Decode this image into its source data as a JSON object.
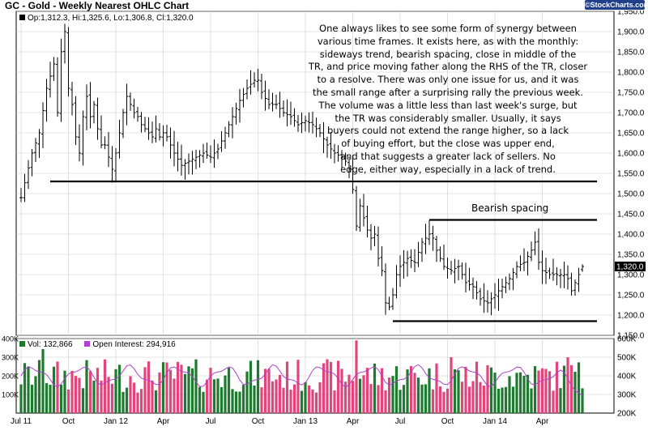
{
  "header": {
    "title": "GC - Gold - Weekly Nearest OHLC Chart",
    "brand": "©StockCharts.com"
  },
  "legend": {
    "ohlc": "Op:1,312.3, Hi:1,325.6, Lo:1,306.8, Cl:1,320.0",
    "volume": "Vol: 132,866",
    "open_interest": "Open Interest: 294,916"
  },
  "annotations": {
    "commentary": "One always likes to see some form of synergy between\nvarious time frames.  It exists here, as with the monthly:\nsideways trend, bearish spacing, close in middle of the\nTR, and price moving father along the RHS of the TR, closer\nto a resolve.  There was only one issue for us, and it was\nthe small range after a surprising rally the previous week.\nThe volume was a little less than last week's surge, but\nthe TR was considerably smaller.  Usually, it says\nbuyers could not extend the range higher, so a lack\nof buying effort, but the close was upper end,\nand that suggests a greater lack of sellers.  No\nedge, either way, especially in a lack of trend.",
    "bearish_spacing": "Bearish spacing"
  },
  "colors": {
    "price_bar": "#000000",
    "vol_up": "#1e7a2e",
    "vol_down": "#e0457b",
    "open_interest": "#b040d0",
    "last_price_box": "#000000",
    "grid": "#cccccc"
  },
  "chart_data": {
    "type": "ohlc",
    "title": "GC - Gold - Weekly Nearest OHLC Chart",
    "price_axis": {
      "min": 1150,
      "max": 1950,
      "ticks": [
        "1,150.0",
        "1,200.0",
        "1,250.0",
        "1,300.0",
        "1,350.0",
        "1,400.0",
        "1,450.0",
        "1,500.0",
        "1,550.0",
        "1,600.0",
        "1,650.0",
        "1,700.0",
        "1,750.0",
        "1,800.0",
        "1,850.0",
        "1,900.0",
        "1,950.0"
      ]
    },
    "x_ticks": [
      "Jul 11",
      "Oct",
      "Jan 12",
      "Apr",
      "Jul",
      "Oct",
      "Jan 13",
      "Apr",
      "Jul",
      "Oct",
      "Jan 14",
      "Apr"
    ],
    "x_tick_weeks": [
      0,
      13,
      26,
      39,
      52,
      65,
      78,
      91,
      104,
      117,
      130,
      143
    ],
    "last_price": "1,320.0",
    "anchors": [
      [
        0,
        1490
      ],
      [
        3,
        1600
      ],
      [
        5,
        1650
      ],
      [
        7,
        1760
      ],
      [
        9,
        1820
      ],
      [
        10,
        1700
      ],
      [
        11,
        1850
      ],
      [
        12,
        1900
      ],
      [
        13,
        1760
      ],
      [
        14,
        1720
      ],
      [
        15,
        1640
      ],
      [
        16,
        1600
      ],
      [
        17,
        1690
      ],
      [
        18,
        1740
      ],
      [
        19,
        1690
      ],
      [
        20,
        1720
      ],
      [
        21,
        1660
      ],
      [
        22,
        1620
      ],
      [
        23,
        1620
      ],
      [
        24,
        1590
      ],
      [
        25,
        1560
      ],
      [
        26,
        1600
      ],
      [
        27,
        1650
      ],
      [
        28,
        1700
      ],
      [
        29,
        1740
      ],
      [
        30,
        1720
      ],
      [
        31,
        1700
      ],
      [
        32,
        1690
      ],
      [
        33,
        1670
      ],
      [
        34,
        1660
      ],
      [
        35,
        1650
      ],
      [
        36,
        1640
      ],
      [
        37,
        1660
      ],
      [
        38,
        1640
      ],
      [
        39,
        1650
      ],
      [
        40,
        1640
      ],
      [
        41,
        1620
      ],
      [
        42,
        1600
      ],
      [
        44,
        1570
      ],
      [
        46,
        1580
      ],
      [
        48,
        1590
      ],
      [
        50,
        1600
      ],
      [
        52,
        1590
      ],
      [
        54,
        1610
      ],
      [
        56,
        1650
      ],
      [
        58,
        1690
      ],
      [
        60,
        1730
      ],
      [
        62,
        1760
      ],
      [
        64,
        1780
      ],
      [
        65,
        1780
      ],
      [
        66,
        1750
      ],
      [
        68,
        1720
      ],
      [
        70,
        1720
      ],
      [
        72,
        1700
      ],
      [
        74,
        1690
      ],
      [
        76,
        1670
      ],
      [
        78,
        1680
      ],
      [
        80,
        1670
      ],
      [
        82,
        1650
      ],
      [
        84,
        1620
      ],
      [
        86,
        1600
      ],
      [
        88,
        1590
      ],
      [
        89,
        1580
      ],
      [
        90,
        1560
      ],
      [
        91,
        1510
      ],
      [
        92,
        1420
      ],
      [
        93,
        1470
      ],
      [
        94,
        1440
      ],
      [
        95,
        1410
      ],
      [
        96,
        1390
      ],
      [
        97,
        1400
      ],
      [
        98,
        1340
      ],
      [
        99,
        1310
      ],
      [
        100,
        1230
      ],
      [
        101,
        1220
      ],
      [
        102,
        1250
      ],
      [
        103,
        1300
      ],
      [
        104,
        1320
      ],
      [
        106,
        1340
      ],
      [
        108,
        1330
      ],
      [
        110,
        1380
      ],
      [
        112,
        1400
      ],
      [
        113,
        1390
      ],
      [
        114,
        1360
      ],
      [
        116,
        1320
      ],
      [
        118,
        1310
      ],
      [
        120,
        1320
      ],
      [
        122,
        1280
      ],
      [
        124,
        1270
      ],
      [
        126,
        1240
      ],
      [
        128,
        1230
      ],
      [
        130,
        1250
      ],
      [
        132,
        1270
      ],
      [
        134,
        1290
      ],
      [
        136,
        1320
      ],
      [
        138,
        1330
      ],
      [
        140,
        1360
      ],
      [
        141,
        1380
      ],
      [
        142,
        1330
      ],
      [
        143,
        1310
      ],
      [
        145,
        1300
      ],
      [
        147,
        1300
      ],
      [
        149,
        1300
      ],
      [
        150,
        1290
      ],
      [
        151,
        1260
      ],
      [
        152,
        1280
      ],
      [
        153,
        1300
      ],
      [
        154,
        1320
      ]
    ],
    "last_bar_ohlc": {
      "open": 1312.3,
      "high": 1325.6,
      "low": 1306.8,
      "close": 1320.0
    },
    "horizontal_lines": [
      {
        "label": "",
        "value": 1530,
        "from_week": 8,
        "to_week": 158
      },
      {
        "label": "Bearish spacing",
        "value": 1435,
        "from_week": 112,
        "to_week": 158
      },
      {
        "label": "",
        "value": 1185,
        "from_week": 102,
        "to_week": 158
      }
    ],
    "volume_axis": {
      "min": 0,
      "max": 400000,
      "ticks": [
        "100K",
        "200K",
        "300K",
        "400K"
      ]
    },
    "open_interest_axis": {
      "min": 200000,
      "max": 600000,
      "ticks": [
        "200K",
        "300K",
        "400K",
        "500K",
        "600K"
      ]
    },
    "volume_note": "weekly volume bars, green when the week closed up, pink when it closed down; open interest shown as purple line",
    "volume_last": 132866,
    "open_interest_last": 294916
  }
}
